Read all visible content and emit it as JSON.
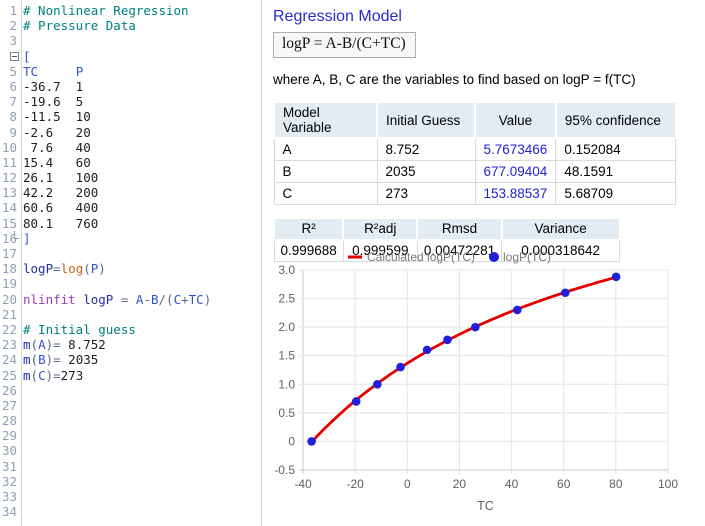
{
  "editor": {
    "line_count": 34,
    "lines": [
      {
        "n": 1,
        "t": [
          [
            "c",
            "# Nonlinear Regression"
          ]
        ]
      },
      {
        "n": 2,
        "t": [
          [
            "c",
            "# Pressure Data"
          ]
        ]
      },
      {
        "n": 3,
        "t": []
      },
      {
        "n": 4,
        "fold": "start",
        "t": [
          [
            "v",
            "["
          ]
        ]
      },
      {
        "n": 5,
        "t": [
          [
            "v",
            "TC"
          ],
          [
            "o",
            "     "
          ],
          [
            "v",
            "P"
          ]
        ]
      },
      {
        "n": 6,
        "t": [
          [
            "n",
            "-36.7  1"
          ]
        ]
      },
      {
        "n": 7,
        "t": [
          [
            "n",
            "-19.6  5"
          ]
        ]
      },
      {
        "n": 8,
        "t": [
          [
            "n",
            "-11.5  10"
          ]
        ]
      },
      {
        "n": 9,
        "t": [
          [
            "n",
            "-2.6   20"
          ]
        ]
      },
      {
        "n": 10,
        "t": [
          [
            "n",
            " 7.6   40"
          ]
        ]
      },
      {
        "n": 11,
        "t": [
          [
            "n",
            "15.4   60"
          ]
        ]
      },
      {
        "n": 12,
        "t": [
          [
            "n",
            "26.1   100"
          ]
        ]
      },
      {
        "n": 13,
        "t": [
          [
            "n",
            "42.2   200"
          ]
        ]
      },
      {
        "n": 14,
        "t": [
          [
            "n",
            "60.6   400"
          ]
        ]
      },
      {
        "n": 15,
        "t": [
          [
            "n",
            "80.1   760"
          ]
        ]
      },
      {
        "n": 16,
        "fold": "end",
        "t": [
          [
            "v",
            "]"
          ]
        ]
      },
      {
        "n": 17,
        "t": []
      },
      {
        "n": 18,
        "t": [
          [
            "nv",
            "logP"
          ],
          [
            "o",
            "="
          ],
          [
            "f",
            "log"
          ],
          [
            "o",
            "("
          ],
          [
            "v",
            "P"
          ],
          [
            "o",
            ")"
          ]
        ]
      },
      {
        "n": 19,
        "t": []
      },
      {
        "n": 20,
        "t": [
          [
            "k",
            "nlinfit"
          ],
          [
            "o",
            " "
          ],
          [
            "nv",
            "logP"
          ],
          [
            "o",
            " = "
          ],
          [
            "v",
            "A"
          ],
          [
            "o",
            "-"
          ],
          [
            "v",
            "B"
          ],
          [
            "o",
            "/("
          ],
          [
            "v",
            "C"
          ],
          [
            "o",
            "+"
          ],
          [
            "v",
            "TC"
          ],
          [
            "o",
            ")"
          ]
        ]
      },
      {
        "n": 21,
        "t": []
      },
      {
        "n": 22,
        "t": [
          [
            "c",
            "# Initial guess"
          ]
        ]
      },
      {
        "n": 23,
        "t": [
          [
            "nv",
            "m"
          ],
          [
            "o",
            "("
          ],
          [
            "v",
            "A"
          ],
          [
            "o",
            ")= "
          ],
          [
            "n",
            "8.752"
          ]
        ]
      },
      {
        "n": 24,
        "t": [
          [
            "nv",
            "m"
          ],
          [
            "o",
            "("
          ],
          [
            "v",
            "B"
          ],
          [
            "o",
            ")= "
          ],
          [
            "n",
            "2035"
          ]
        ]
      },
      {
        "n": 25,
        "t": [
          [
            "nv",
            "m"
          ],
          [
            "o",
            "("
          ],
          [
            "v",
            "C"
          ],
          [
            "o",
            ")="
          ],
          [
            "n",
            "273"
          ]
        ]
      },
      {
        "n": 26,
        "t": []
      },
      {
        "n": 27,
        "t": []
      },
      {
        "n": 28,
        "t": []
      },
      {
        "n": 29,
        "t": []
      },
      {
        "n": 30,
        "t": []
      },
      {
        "n": 31,
        "t": []
      },
      {
        "n": 32,
        "t": []
      },
      {
        "n": 33,
        "t": []
      },
      {
        "n": 34,
        "t": []
      }
    ]
  },
  "output": {
    "title": "Regression Model",
    "formula": "logP = A-B/(C+TC)",
    "subtitle": "where A, B, C are the variables to find based on logP = f(TC)",
    "variables_table": {
      "headers": [
        "Model Variable",
        "Initial Guess",
        "Value",
        "95% confidence"
      ],
      "rows": [
        [
          "A",
          "8.752",
          "5.7673466",
          "0.152084"
        ],
        [
          "B",
          "2035",
          "677.09404",
          "48.1591"
        ],
        [
          "C",
          "273",
          "153.88537",
          "5.68709"
        ]
      ]
    },
    "stats_table": {
      "headers": [
        "R²",
        "R²adj",
        "Rmsd",
        "Variance"
      ],
      "rows": [
        [
          "0.999688",
          "0.999599",
          "0.00472281",
          "0.000318642"
        ]
      ]
    }
  },
  "chart_data": {
    "type": "line+scatter",
    "title": "",
    "xlabel": "TC",
    "ylabel": "",
    "xlim": [
      -40,
      100
    ],
    "ylim": [
      -0.5,
      3.0
    ],
    "x_ticks": [
      -40,
      -20,
      0,
      20,
      40,
      60,
      80,
      100
    ],
    "y_tick_labels": [
      "3.0",
      "2.5",
      "2.0",
      "1.5",
      "1.0",
      "0.5",
      "0",
      "-0.5"
    ],
    "grid": true,
    "legend_position": "top",
    "series": [
      {
        "name": "Calculated logP(TC)",
        "type": "line",
        "color": "#e60000",
        "model": {
          "A": 5.7673466,
          "B": 677.09404,
          "C": 153.88537
        },
        "x_from": -36.7,
        "x_to": 80.1
      },
      {
        "name": "logP(TC)",
        "type": "scatter",
        "color": "#2020db",
        "points": [
          [
            -36.7,
            0
          ],
          [
            -19.6,
            0.69897
          ],
          [
            -11.5,
            1
          ],
          [
            -2.6,
            1.30103
          ],
          [
            7.6,
            1.60206
          ],
          [
            15.4,
            1.77815
          ],
          [
            26.1,
            2
          ],
          [
            42.2,
            2.30103
          ],
          [
            60.6,
            2.60206
          ],
          [
            80.1,
            2.88081
          ]
        ]
      }
    ]
  },
  "colors": {
    "accent_heading": "#2a2ad0",
    "table_header_bg": "#e3ecf3",
    "value_text": "#2222d0",
    "comment": "#008080",
    "keyword": "#9d3ac4",
    "variable": "#2f55cf",
    "function": "#cc6219",
    "fit_line": "#e60000",
    "data_point": "#2020db",
    "grid_line": "#e4e4e4",
    "axis_text": "#616161"
  }
}
